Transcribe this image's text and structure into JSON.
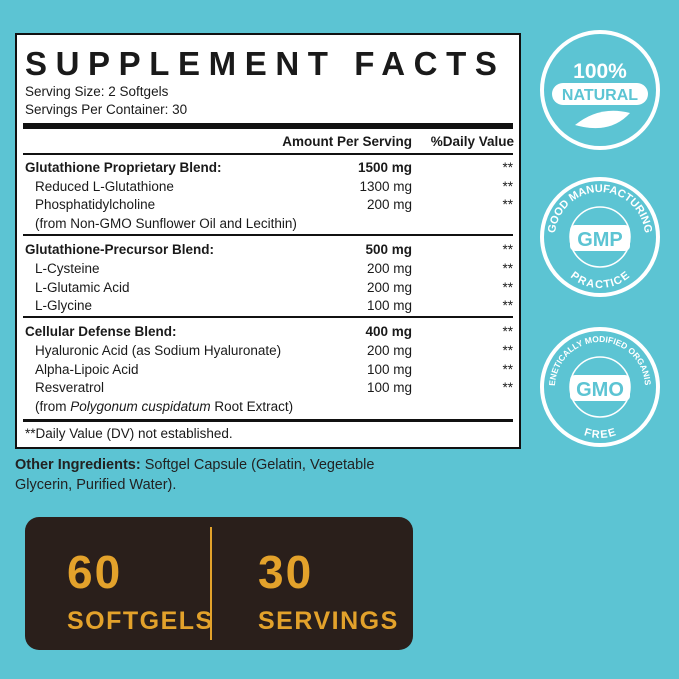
{
  "panel": {
    "title": "SUPPLEMENT FACTS",
    "serving_size": "Serving Size: 2 Softgels",
    "servings_per_container": "Servings Per Container: 30",
    "header": {
      "amount": "Amount Per Serving",
      "dv": "%Daily Value"
    },
    "sections": [
      {
        "rows": [
          {
            "name": "Glutathione Proprietary Blend:",
            "amount": "1500 mg",
            "dv": "**"
          },
          {
            "name": "Reduced L-Glutathione",
            "amount": "1300 mg",
            "dv": "**"
          },
          {
            "name": "Phosphatidylcholine",
            "amount": "200 mg",
            "dv": "**"
          },
          {
            "name": "(from Non-GMO Sunflower Oil and Lecithin)"
          }
        ]
      },
      {
        "rows": [
          {
            "name": "Glutathione-Precursor Blend:",
            "amount": "500 mg",
            "dv": "**"
          },
          {
            "name": "L-Cysteine",
            "amount": "200 mg",
            "dv": "**"
          },
          {
            "name": "L-Glutamic Acid",
            "amount": "200 mg",
            "dv": "**"
          },
          {
            "name": "L-Glycine",
            "amount": "100 mg",
            "dv": "**"
          }
        ]
      },
      {
        "rows": [
          {
            "name": "Cellular Defense Blend:",
            "amount": "400 mg",
            "dv": "**"
          },
          {
            "name": "Hyaluronic Acid (as Sodium Hyaluronate)",
            "amount": "200 mg",
            "dv": "**"
          },
          {
            "name": "Alpha-Lipoic Acid",
            "amount": "100 mg",
            "dv": "**"
          },
          {
            "name": "Resveratrol",
            "amount": "100 mg",
            "dv": "**"
          },
          {
            "name": "(from ",
            "italic": "Polygonum cuspidatum",
            "name_end": " Root Extract)"
          }
        ]
      }
    ],
    "footnote": "**Daily Value (DV) not established."
  },
  "other_ingredients": {
    "label": "Other Ingredients:",
    "text": " Softgel Capsule (Gelatin, Vegetable Glycerin, Purified Water)."
  },
  "counts": [
    {
      "number": "60",
      "label": "SOFTGELS"
    },
    {
      "number": "30",
      "label": "SERVINGS"
    }
  ],
  "badges": {
    "natural": {
      "top": "100%",
      "bottom": "NATURAL"
    },
    "gmp": {
      "arc_top": "GOOD MANUFACTURING",
      "center": "GMP",
      "arc_bottom": "PRACTICE"
    },
    "gmo": {
      "arc_top": "GENETICALLY MODIFIED ORGANISM",
      "center": "GMO",
      "arc_bottom": "FREE"
    }
  }
}
